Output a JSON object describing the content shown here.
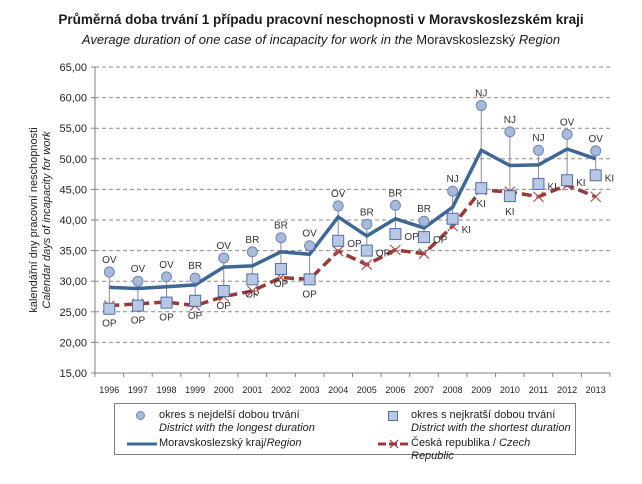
{
  "chart_data": {
    "type": "line",
    "title": "Průměrná doba trvání 1 případu pracovní neschopnosti v Moravskoslezském kraji",
    "subtitle": {
      "italic_part": "Average duration of one case of incapacity for work in the",
      "upright_part": "Moravskoslezský",
      "italic_end": "Region"
    },
    "ylabel": [
      "kalendářní dny pracovní neschopnosti",
      "Calendar days of incapacity for work"
    ],
    "xlabel": "",
    "ylim": [
      15,
      65
    ],
    "yticks": [
      "15,00",
      "20,00",
      "25,00",
      "30,00",
      "35,00",
      "40,00",
      "45,00",
      "50,00",
      "55,00",
      "60,00",
      "65,00"
    ],
    "ytick_values": [
      15,
      20,
      25,
      30,
      35,
      40,
      45,
      50,
      55,
      60,
      65
    ],
    "grid": true,
    "categories": [
      "1996",
      "1997",
      "1998",
      "1999",
      "2000",
      "2001",
      "2002",
      "2003",
      "2004",
      "2005",
      "2006",
      "2007",
      "2008",
      "2009",
      "2010",
      "2011",
      "2012",
      "2013"
    ],
    "series": [
      {
        "name": "okres s nejdelší dobou trvání / District with the longest duration",
        "kind": "circle-marker",
        "color": "#a9b9da",
        "values": [
          31.5,
          30.0,
          30.7,
          30.5,
          33.8,
          34.8,
          37.1,
          35.8,
          42.3,
          39.3,
          42.4,
          39.8,
          44.7,
          58.7,
          54.4,
          51.4,
          54.0,
          51.3
        ],
        "labels": [
          "OV",
          "OV",
          "OV",
          "BR",
          "OV",
          "BR",
          "BR",
          "OV",
          "OV",
          "BR",
          "BR",
          "BR",
          "NJ",
          "NJ",
          "NJ",
          "NJ",
          "OV",
          "OV"
        ]
      },
      {
        "name": "okres s nejkratší dobou trvání / District with the shortest duration",
        "kind": "square-marker",
        "color": "#b8c7e4",
        "values": [
          25.5,
          26.0,
          26.5,
          26.8,
          28.4,
          30.3,
          32.0,
          30.3,
          36.6,
          35.0,
          37.7,
          37.2,
          40.2,
          45.2,
          43.9,
          45.9,
          46.5,
          47.3
        ],
        "labels": [
          "OP",
          "OP",
          "OP",
          "OP",
          "OP",
          "OP",
          "OP",
          "OP",
          "OP",
          "OP",
          "OP",
          "OP",
          "KI",
          "KI",
          "KI",
          "KI",
          "KI",
          "KI"
        ]
      },
      {
        "name": "Moravskoslezský kraj/Region",
        "kind": "solid-line",
        "color": "#3f6796",
        "values": [
          29.0,
          28.8,
          29.1,
          29.4,
          32.3,
          32.5,
          34.8,
          34.4,
          40.5,
          37.4,
          40.2,
          38.7,
          42.1,
          51.4,
          48.9,
          49.0,
          51.6,
          50.0
        ]
      },
      {
        "name": "Česká republika / Czech Republic",
        "kind": "dashed-line-x",
        "color": "#983a3a",
        "values": [
          26.0,
          26.3,
          26.6,
          26.0,
          27.5,
          28.4,
          30.6,
          30.3,
          34.9,
          32.7,
          35.1,
          34.5,
          39.0,
          44.9,
          44.6,
          43.8,
          45.7,
          43.8
        ]
      }
    ],
    "legend": {
      "placement": "bottom",
      "items": [
        {
          "line1": "okres s nejdelší dobou trvání",
          "line2": "District with the longest duration"
        },
        {
          "line1": "okres s nejkratší dobou trvání",
          "line2": "District with the shortest duration"
        },
        {
          "main": "Moravskoslezský kraj/",
          "italic": "Region"
        },
        {
          "main": "Česká republika / ",
          "italic": "Czech Republic"
        }
      ]
    }
  }
}
